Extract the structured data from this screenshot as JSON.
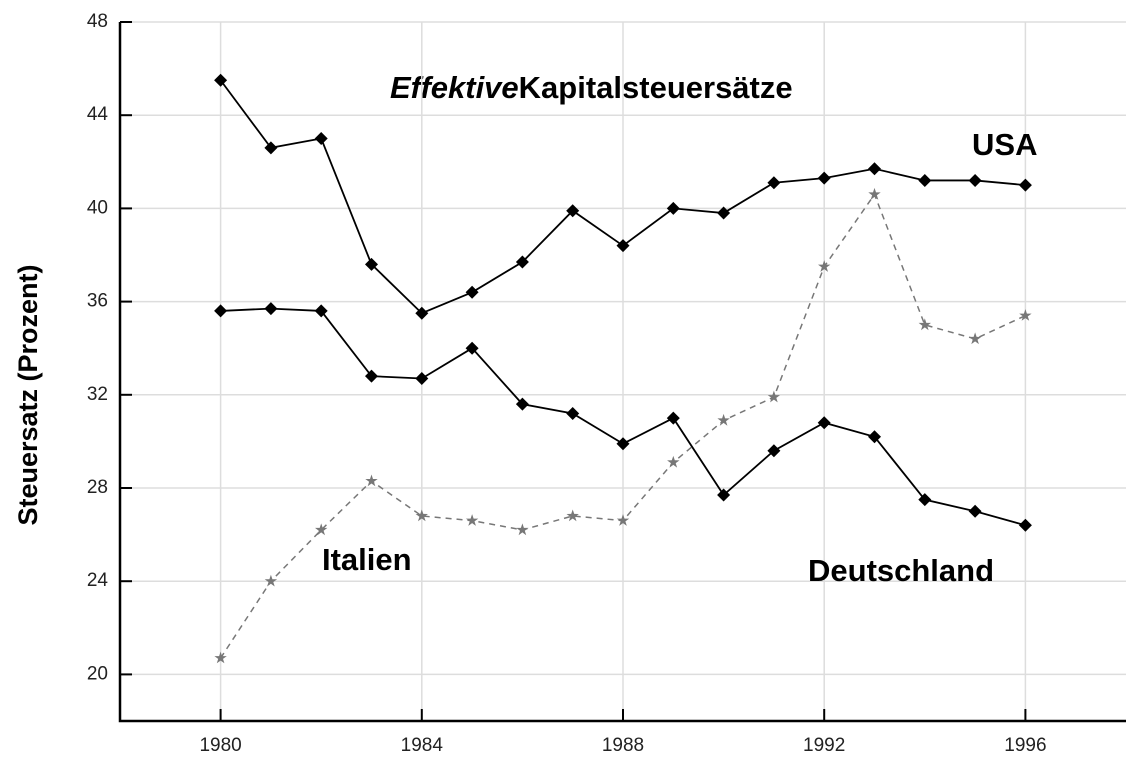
{
  "chart_data": {
    "type": "line",
    "title_emphasis": "Effektive",
    "title": "Kapitalsteuersätze",
    "y_label": "Steuersatz (Prozent)",
    "x": [
      1980,
      1981,
      1982,
      1983,
      1984,
      1985,
      1986,
      1987,
      1988,
      1989,
      1990,
      1991,
      1992,
      1993,
      1994,
      1995,
      1996
    ],
    "series": [
      {
        "name": "USA",
        "color": "#000000",
        "marker": "diamond",
        "dash": false,
        "values": [
          45.5,
          42.6,
          43.0,
          37.6,
          35.5,
          36.4,
          37.7,
          39.9,
          38.4,
          40.0,
          39.8,
          41.1,
          41.3,
          41.7,
          41.2,
          41.2,
          41.0
        ]
      },
      {
        "name": "Deutschland",
        "color": "#000000",
        "marker": "diamond",
        "dash": false,
        "values": [
          35.6,
          35.7,
          35.6,
          32.8,
          32.7,
          34.0,
          31.6,
          31.2,
          29.9,
          31.0,
          27.7,
          29.6,
          30.8,
          30.2,
          27.5,
          27.0,
          26.4
        ]
      },
      {
        "name": "Italien",
        "color": "#777777",
        "marker": "star",
        "dash": true,
        "values": [
          20.7,
          24.0,
          26.2,
          28.3,
          26.8,
          26.6,
          26.2,
          26.8,
          26.6,
          29.1,
          30.9,
          31.9,
          37.5,
          40.6,
          35.0,
          34.4,
          35.4
        ]
      }
    ],
    "xlim": [
      1978,
      1998
    ],
    "xticks": [
      1980,
      1984,
      1988,
      1992,
      1996
    ],
    "ylim": [
      18,
      48
    ],
    "yticks": [
      20,
      24,
      28,
      32,
      36,
      40,
      44,
      48
    ],
    "grid": true
  }
}
